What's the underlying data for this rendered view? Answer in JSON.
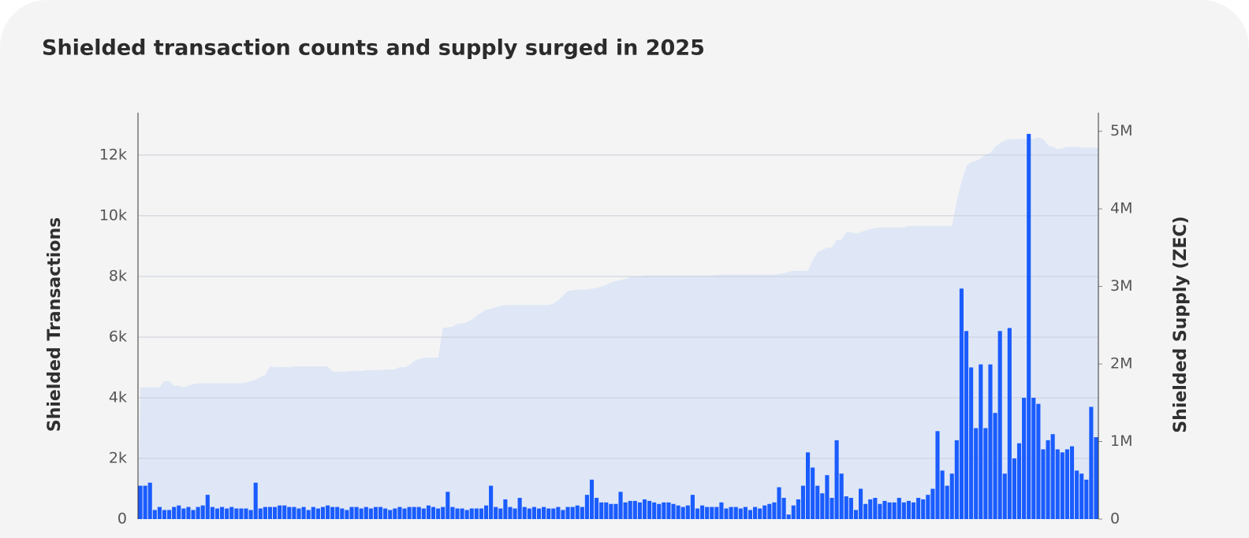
{
  "chart_data": {
    "type": "bar",
    "title": "Shielded transaction counts and supply surged in 2025",
    "y_label": "Shielded Transactions",
    "y2_label": "Shielded Supply (ZEC)",
    "ylim": [
      0,
      13400
    ],
    "yticks": [
      0,
      {
        "value": 2000,
        "label": "2k"
      },
      {
        "value": 4000,
        "label": "4k"
      },
      {
        "value": 6000,
        "label": "6k"
      },
      {
        "value": 8000,
        "label": "8k"
      },
      {
        "value": 10000,
        "label": "10k"
      },
      {
        "value": 12000,
        "label": "12k"
      }
    ],
    "y2lim": [
      0,
      5240000
    ],
    "y2ticks": [
      0,
      {
        "value": 1000000,
        "label": "1M"
      },
      {
        "value": 2000000,
        "label": "2M"
      },
      {
        "value": 3000000,
        "label": "3M"
      },
      {
        "value": 4000000,
        "label": "4M"
      },
      {
        "value": 5000000,
        "label": "5M"
      }
    ],
    "grid": true,
    "series": [
      {
        "type": "bar",
        "color": "#1a5cff",
        "values": [
          1100,
          1100,
          1200,
          300,
          400,
          300,
          300,
          400,
          450,
          350,
          400,
          300,
          400,
          450,
          800,
          400,
          350,
          400,
          350,
          400,
          350,
          350,
          350,
          300,
          1200,
          350,
          400,
          400,
          400,
          450,
          450,
          400,
          400,
          350,
          400,
          300,
          400,
          350,
          400,
          450,
          400,
          400,
          350,
          300,
          400,
          400,
          350,
          400,
          350,
          400,
          400,
          350,
          300,
          350,
          400,
          350,
          400,
          400,
          400,
          350,
          450,
          400,
          350,
          400,
          900,
          400,
          350,
          350,
          300,
          350,
          350,
          350,
          450,
          1100,
          400,
          350,
          650,
          400,
          350,
          700,
          400,
          350,
          400,
          350,
          400,
          350,
          350,
          400,
          300,
          400,
          400,
          450,
          400,
          800,
          1300,
          700,
          550,
          550,
          500,
          500,
          900,
          550,
          600,
          600,
          550,
          650,
          600,
          550,
          500,
          550,
          550,
          500,
          450,
          400,
          450,
          800,
          350,
          450,
          400,
          400,
          400,
          550,
          350,
          400,
          400,
          350,
          400,
          300,
          400,
          350,
          450,
          500,
          550,
          1050,
          700,
          150,
          450,
          650,
          1100,
          2200,
          1700,
          1100,
          850,
          1450,
          700,
          2600,
          1500,
          750,
          700,
          300,
          1000,
          500,
          650,
          700,
          500,
          600,
          550,
          550,
          700,
          550,
          600,
          550,
          700,
          650,
          800,
          1000,
          2900,
          1600,
          1100,
          1500,
          2600,
          7600,
          6200,
          5000,
          3000,
          5100,
          3000,
          5100,
          3500,
          6200,
          1500,
          6300,
          2000,
          2500,
          4000,
          12700,
          4000,
          3800,
          2300,
          2600,
          2800,
          2300,
          2200,
          2300,
          2400,
          1600,
          1500,
          1300,
          3700,
          2700
        ]
      },
      {
        "type": "area",
        "axis": "y2",
        "color": "#dfe7f6",
        "values": [
          1700000,
          1700000,
          1700000,
          1700000,
          1700000,
          1780000,
          1780000,
          1720000,
          1720000,
          1700000,
          1720000,
          1740000,
          1750000,
          1750000,
          1750000,
          1750000,
          1750000,
          1750000,
          1750000,
          1750000,
          1750000,
          1750000,
          1760000,
          1780000,
          1800000,
          1830000,
          1860000,
          1970000,
          1960000,
          1960000,
          1960000,
          1960000,
          1970000,
          1970000,
          1970000,
          1970000,
          1970000,
          1970000,
          1970000,
          1970000,
          1900000,
          1900000,
          1900000,
          1900000,
          1910000,
          1910000,
          1910000,
          1920000,
          1920000,
          1920000,
          1920000,
          1930000,
          1930000,
          1930000,
          1960000,
          1960000,
          1980000,
          2040000,
          2060000,
          2080000,
          2080000,
          2080000,
          2080000,
          2470000,
          2470000,
          2480000,
          2520000,
          2520000,
          2540000,
          2570000,
          2620000,
          2660000,
          2700000,
          2710000,
          2730000,
          2750000,
          2760000,
          2760000,
          2760000,
          2760000,
          2760000,
          2760000,
          2760000,
          2760000,
          2760000,
          2760000,
          2780000,
          2820000,
          2880000,
          2940000,
          2950000,
          2960000,
          2960000,
          2960000,
          2970000,
          2980000,
          3000000,
          3020000,
          3050000,
          3070000,
          3080000,
          3100000,
          3120000,
          3130000,
          3130000,
          3140000,
          3140000,
          3140000,
          3140000,
          3140000,
          3140000,
          3140000,
          3140000,
          3140000,
          3140000,
          3140000,
          3140000,
          3140000,
          3140000,
          3140000,
          3150000,
          3150000,
          3150000,
          3150000,
          3150000,
          3150000,
          3150000,
          3150000,
          3150000,
          3150000,
          3150000,
          3150000,
          3150000,
          3160000,
          3170000,
          3190000,
          3200000,
          3200000,
          3200000,
          3200000,
          3340000,
          3440000,
          3470000,
          3500000,
          3500000,
          3600000,
          3600000,
          3700000,
          3700000,
          3680000,
          3700000,
          3720000,
          3740000,
          3750000,
          3760000,
          3760000,
          3760000,
          3760000,
          3760000,
          3760000,
          3780000,
          3780000,
          3780000,
          3780000,
          3780000,
          3780000,
          3780000,
          3780000,
          3780000,
          3780000,
          4100000,
          4350000,
          4550000,
          4600000,
          4620000,
          4650000,
          4700000,
          4720000,
          4800000,
          4850000,
          4880000,
          4900000,
          4900000,
          4900000,
          4900000,
          4900000,
          4900000,
          4920000,
          4900000,
          4820000,
          4800000,
          4770000,
          4780000,
          4800000,
          4800000,
          4800000,
          4790000,
          4790000,
          4790000,
          4790000
        ]
      }
    ]
  }
}
